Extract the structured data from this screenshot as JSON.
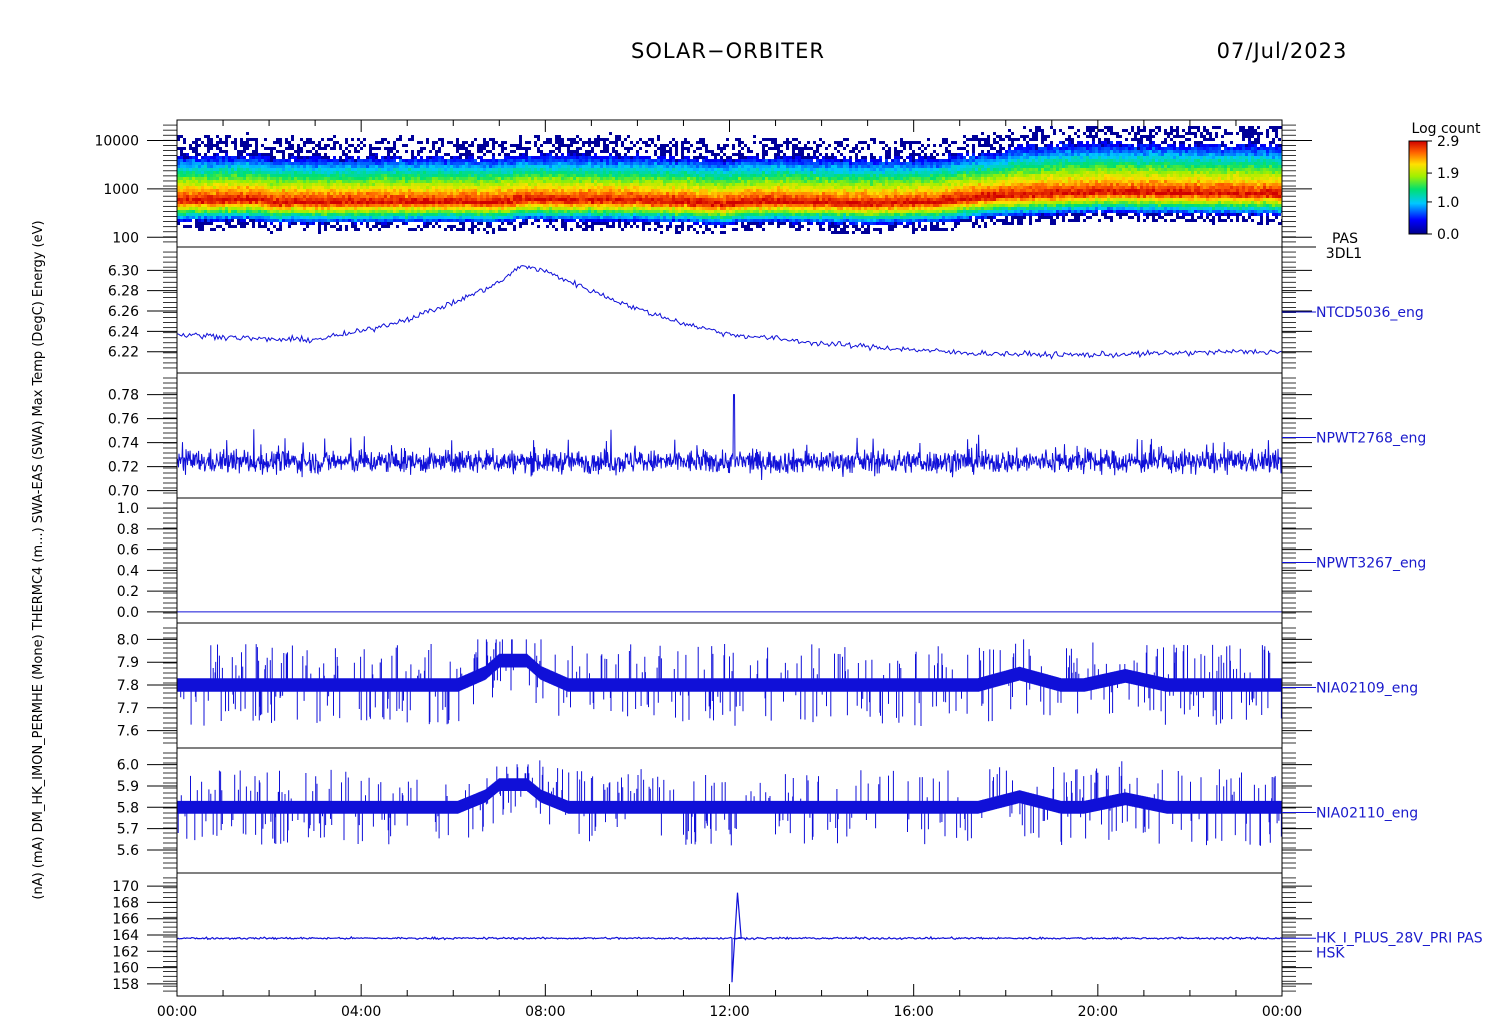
{
  "header": {
    "mission": "SOLAR−ORBITER",
    "date": "07/Jul/2023"
  },
  "y_axis_text": "(nA) (mA) DM_HK_IMON_PERMHE (Mone) THERMC4 (m...) SWA-EAS (SWA) Max Temp (DegC) Energy (eV)",
  "x_axis": {
    "ticks": [
      "00:00",
      "04:00",
      "08:00",
      "12:00",
      "16:00",
      "20:00",
      "00:00"
    ],
    "hour_values": [
      0,
      4,
      8,
      12,
      16,
      20,
      24
    ]
  },
  "colorbar": {
    "title": "Log count",
    "ticks": [
      "2.9",
      "1.9",
      "1.0",
      "0.0"
    ],
    "tick_values": [
      2.9,
      1.9,
      1.0,
      0.0
    ]
  },
  "chart_data": [
    {
      "type": "heatmap",
      "label_lines": [
        "PAS",
        "3DL1"
      ],
      "ylabel": "Energy (eV)",
      "y_scale": "log",
      "yticks": [
        "10000",
        "1000",
        "100"
      ],
      "ytick_values": [
        10000,
        1000,
        100
      ],
      "ylim": [
        80,
        20000
      ],
      "xlim": [
        0,
        24
      ],
      "peak_energy_eV": [
        [
          0,
          600
        ],
        [
          1.8,
          620
        ],
        [
          2,
          560
        ],
        [
          4,
          560
        ],
        [
          6,
          580
        ],
        [
          7,
          560
        ],
        [
          7.5,
          640
        ],
        [
          9,
          620
        ],
        [
          10,
          600
        ],
        [
          11,
          560
        ],
        [
          11.8,
          500
        ],
        [
          12.2,
          560
        ],
        [
          13,
          580
        ],
        [
          15,
          520
        ],
        [
          16.5,
          560
        ],
        [
          17,
          640
        ],
        [
          18,
          760
        ],
        [
          20,
          900
        ],
        [
          22,
          860
        ],
        [
          24,
          820
        ]
      ]
    },
    {
      "type": "line",
      "label": "NTCD5036_eng",
      "yticks": [
        "6.30",
        "6.28",
        "6.26",
        "6.24",
        "6.22"
      ],
      "ytick_values": [
        6.3,
        6.28,
        6.26,
        6.24,
        6.22
      ],
      "ylim": [
        6.205,
        6.318
      ],
      "xlim": [
        0,
        24
      ],
      "x": [
        0,
        1,
        2,
        3,
        4,
        5,
        6,
        7,
        7.5,
        8,
        9,
        10,
        11,
        12,
        13,
        14,
        15,
        16,
        17,
        18,
        19,
        20,
        21,
        22,
        23,
        24
      ],
      "y": [
        6.237,
        6.235,
        6.232,
        6.232,
        6.24,
        6.252,
        6.268,
        6.288,
        6.305,
        6.299,
        6.28,
        6.262,
        6.248,
        6.237,
        6.233,
        6.228,
        6.225,
        6.222,
        6.219,
        6.218,
        6.217,
        6.217,
        6.218,
        6.219,
        6.22,
        6.22
      ]
    },
    {
      "type": "line",
      "label": "NPWT2768_eng",
      "yticks": [
        "0.78",
        "0.76",
        "0.74",
        "0.72",
        "0.70"
      ],
      "ytick_values": [
        0.78,
        0.76,
        0.74,
        0.72,
        0.7
      ],
      "ylim": [
        0.698,
        0.793
      ],
      "xlim": [
        0,
        24
      ],
      "mean": 0.724,
      "min": 0.706,
      "max": 0.78
    },
    {
      "type": "line",
      "label": "NPWT3267_eng",
      "yticks": [
        "1.0",
        "0.8",
        "0.6",
        "0.4",
        "0.2",
        "0.0"
      ],
      "ytick_values": [
        1.0,
        0.8,
        0.6,
        0.4,
        0.2,
        0.0
      ],
      "ylim": [
        -0.05,
        1.05
      ],
      "xlim": [
        0,
        24
      ],
      "constant": 0.0
    },
    {
      "type": "line",
      "label": "NIA02109_eng",
      "yticks": [
        "8.0",
        "7.9",
        "7.8",
        "7.7",
        "7.6"
      ],
      "ytick_values": [
        8.0,
        7.9,
        7.8,
        7.7,
        7.6
      ],
      "ylim": [
        7.55,
        8.05
      ],
      "xlim": [
        0,
        24
      ],
      "baseline": 7.8,
      "min": 7.58,
      "max": 8.0
    },
    {
      "type": "line",
      "label": "NIA02110_eng",
      "yticks": [
        "6.0",
        "5.9",
        "5.8",
        "5.7",
        "5.6"
      ],
      "ytick_values": [
        6.0,
        5.9,
        5.8,
        5.7,
        5.6
      ],
      "ylim": [
        5.52,
        6.05
      ],
      "xlim": [
        0,
        24
      ],
      "baseline": 5.8,
      "min": 5.55,
      "max": 6.02
    },
    {
      "type": "line",
      "label": "HK_I_PLUS_28V_PRI PAS",
      "label2": "HSK",
      "yticks": [
        "170",
        "168",
        "166",
        "164",
        "162",
        "160",
        "158"
      ],
      "ytick_values": [
        170,
        168,
        166,
        164,
        162,
        160,
        158
      ],
      "ylim": [
        157,
        171
      ],
      "xlim": [
        0,
        24
      ],
      "baseline": 163.6,
      "spike_x": 12.05,
      "spike_min": 158.2,
      "spike_max": 169.2
    }
  ]
}
